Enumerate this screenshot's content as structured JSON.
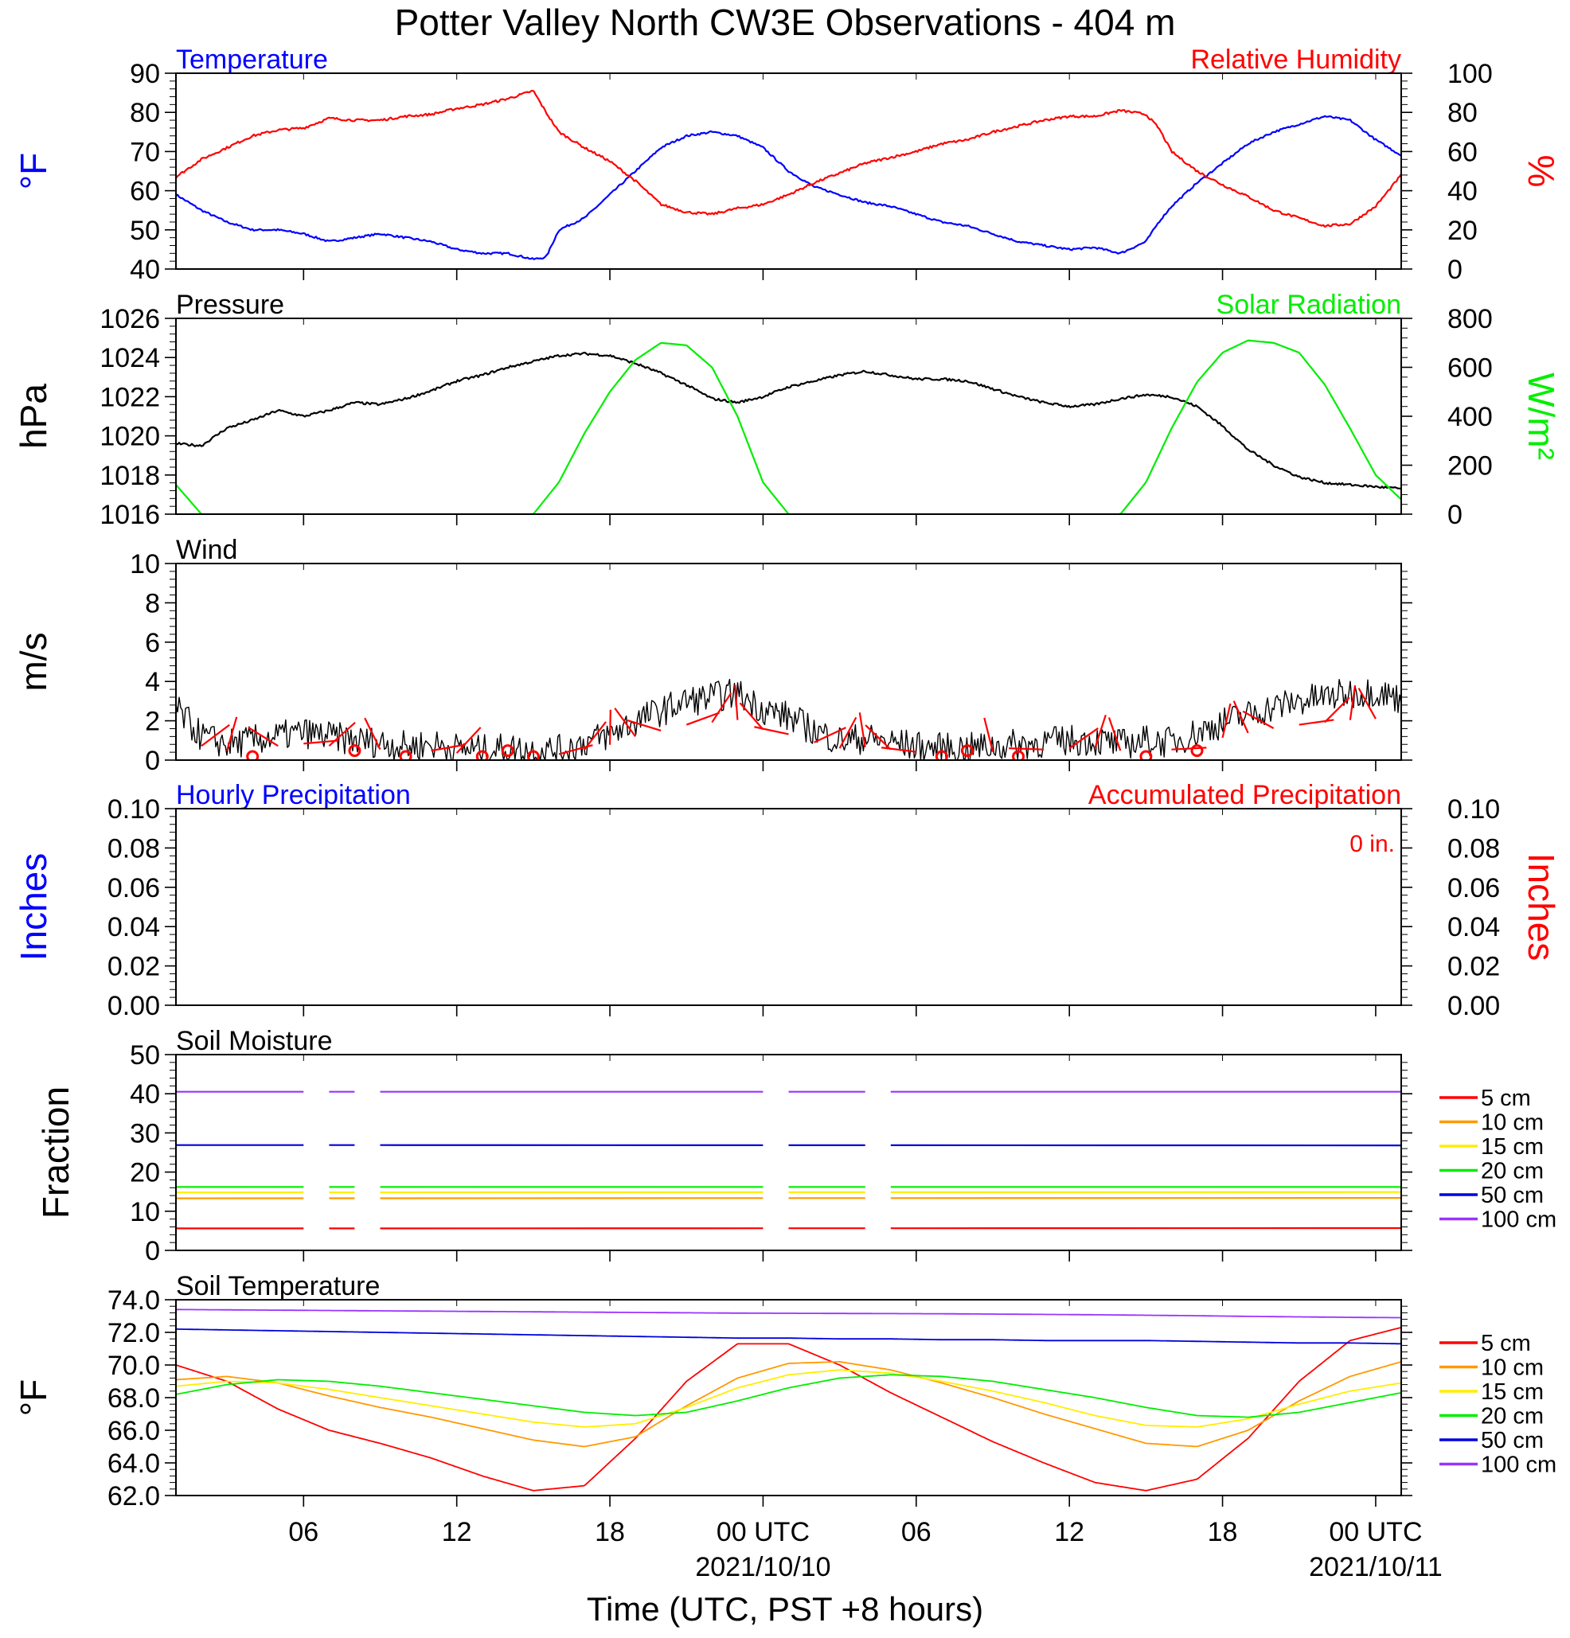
{
  "title": "Potter Valley North CW3E Observations - 404 m",
  "xlabel": "Time (UTC, PST +8 hours)",
  "colors": {
    "temperature": "#0000ff",
    "humidity": "#ff0000",
    "pressure": "#000000",
    "solar": "#00ee00",
    "wind": "#000000",
    "wind_barb": "#ff0000",
    "hourly_precip": "#0000ff",
    "accum_precip": "#ff0000",
    "d5": "#ff0000",
    "d10": "#ff9900",
    "d15": "#ffee00",
    "d20": "#00ee00",
    "d50": "#0000dd",
    "d100": "#9933ff"
  },
  "x_axis": {
    "range_hours": [
      0,
      48
    ],
    "ticks": [
      {
        "h": 5,
        "label": "06",
        "date": ""
      },
      {
        "h": 11,
        "label": "12",
        "date": ""
      },
      {
        "h": 17,
        "label": "18",
        "date": ""
      },
      {
        "h": 23,
        "label": "00 UTC",
        "date": "2021/10/10"
      },
      {
        "h": 29,
        "label": "06",
        "date": ""
      },
      {
        "h": 35,
        "label": "12",
        "date": ""
      },
      {
        "h": 41,
        "label": "18",
        "date": ""
      },
      {
        "h": 47,
        "label": "00 UTC",
        "date": "2021/10/11"
      }
    ]
  },
  "chart_data": [
    {
      "type": "line",
      "title_left": "Temperature",
      "title_right": "Relative Humidity",
      "ylabel_left": "°F",
      "ylabel_right": "%",
      "ylim_left": [
        40,
        90
      ],
      "ylim_right": [
        0,
        100
      ],
      "ticks_left": [
        "40",
        "50",
        "60",
        "70",
        "80",
        "90"
      ],
      "ticks_right": [
        "0",
        "20",
        "40",
        "60",
        "80",
        "100"
      ],
      "x_hours": [
        0,
        1,
        2,
        3,
        4,
        5,
        6,
        7,
        8,
        9,
        10,
        11,
        12,
        13,
        14,
        14.5,
        15,
        16,
        17,
        18,
        19,
        20,
        21,
        22,
        23,
        24,
        25,
        26,
        27,
        28,
        29,
        30,
        31,
        32,
        33,
        34,
        35,
        36,
        37,
        38,
        38.5,
        39,
        40,
        41,
        42,
        43,
        44,
        45,
        46,
        47,
        48
      ],
      "series": [
        {
          "name": "Temperature",
          "axis": "left",
          "values": [
            59,
            55,
            52,
            50,
            50,
            49,
            47,
            48,
            49,
            48,
            47,
            45,
            44,
            44,
            42.5,
            43,
            50,
            53,
            59,
            65,
            71,
            74,
            75,
            74,
            71,
            65,
            61,
            59,
            57,
            56,
            54,
            52,
            51,
            49,
            47,
            46,
            45,
            45.5,
            44,
            47,
            52,
            56,
            62,
            67,
            72,
            75,
            77,
            79,
            78,
            73,
            69
          ]
        },
        {
          "name": "Relative Humidity",
          "axis": "right",
          "values": [
            47,
            56,
            62,
            68,
            71,
            72,
            77,
            76,
            76,
            78,
            79,
            82,
            84,
            87,
            91,
            80,
            70,
            62,
            55,
            45,
            33,
            29,
            28,
            31,
            33,
            38,
            44,
            49,
            54,
            57,
            60,
            64,
            66,
            70,
            73,
            76,
            78,
            78,
            81,
            79,
            72,
            60,
            50,
            43,
            37,
            30,
            26,
            22,
            23,
            32,
            48
          ]
        }
      ]
    },
    {
      "type": "line",
      "title_left": "Pressure",
      "title_right": "Solar Radiation",
      "ylabel_left": "hPa",
      "ylabel_right": "W/m²",
      "ylim_left": [
        1016,
        1026
      ],
      "ylim_right": [
        0,
        800
      ],
      "ticks_left": [
        "1016",
        "1018",
        "1020",
        "1022",
        "1024",
        "1026"
      ],
      "ticks_right": [
        "0",
        "200",
        "400",
        "600",
        "800"
      ],
      "x_hours": [
        0,
        1,
        2,
        3,
        4,
        5,
        6,
        7,
        8,
        9,
        10,
        11,
        12,
        13,
        14,
        15,
        16,
        17,
        18,
        19,
        20,
        21,
        22,
        23,
        24,
        25,
        26,
        27,
        28,
        29,
        30,
        31,
        32,
        33,
        34,
        35,
        36,
        37,
        38,
        39,
        40,
        41,
        42,
        43,
        44,
        45,
        46,
        47,
        48
      ],
      "series": [
        {
          "name": "Pressure",
          "axis": "left",
          "values": [
            1019.6,
            1019.5,
            1020.4,
            1020.8,
            1021.3,
            1021.0,
            1021.3,
            1021.7,
            1021.6,
            1021.9,
            1022.3,
            1022.8,
            1023.1,
            1023.5,
            1023.8,
            1024.1,
            1024.2,
            1024.1,
            1023.7,
            1023.2,
            1022.6,
            1021.9,
            1021.7,
            1022.0,
            1022.5,
            1022.8,
            1023.1,
            1023.3,
            1023.1,
            1022.9,
            1022.9,
            1022.8,
            1022.4,
            1022.0,
            1021.7,
            1021.5,
            1021.6,
            1021.9,
            1022.1,
            1022.0,
            1021.5,
            1020.5,
            1019.3,
            1018.5,
            1017.9,
            1017.6,
            1017.5,
            1017.4,
            1017.3
          ]
        },
        {
          "name": "Solar Radiation",
          "axis": "right",
          "values": [
            120,
            0,
            0,
            0,
            0,
            0,
            0,
            0,
            0,
            0,
            0,
            0,
            0,
            0,
            0,
            130,
            330,
            500,
            630,
            700,
            690,
            600,
            400,
            130,
            0,
            0,
            0,
            0,
            0,
            0,
            0,
            0,
            0,
            0,
            0,
            0,
            0,
            0,
            130,
            350,
            540,
            660,
            710,
            700,
            660,
            530,
            350,
            160,
            60
          ]
        }
      ]
    },
    {
      "type": "line",
      "title_left": "Wind",
      "ylabel_left": "m/s",
      "ylim_left": [
        0,
        10
      ],
      "ticks_left": [
        "0",
        "2",
        "4",
        "6",
        "8",
        "10"
      ],
      "x_hours": [
        0,
        1,
        2,
        3,
        4,
        5,
        6,
        7,
        8,
        9,
        10,
        11,
        12,
        13,
        14,
        15,
        16,
        17,
        18,
        19,
        20,
        21,
        22,
        23,
        24,
        25,
        26,
        27,
        28,
        29,
        30,
        31,
        32,
        33,
        34,
        35,
        36,
        37,
        38,
        39,
        40,
        41,
        42,
        43,
        44,
        45,
        46,
        47,
        48
      ],
      "series": [
        {
          "name": "Wind Speed",
          "axis": "left",
          "values": [
            2.6,
            1.2,
            0.8,
            1.0,
            1.2,
            1.4,
            1.2,
            1.0,
            0.9,
            0.7,
            0.8,
            0.6,
            0.5,
            0.6,
            0.5,
            0.5,
            0.9,
            1.3,
            2.0,
            2.5,
            3.0,
            3.2,
            3.4,
            2.6,
            2.2,
            1.5,
            1.0,
            1.1,
            0.9,
            0.7,
            0.6,
            0.6,
            0.7,
            0.8,
            0.9,
            1.0,
            1.0,
            0.8,
            1.0,
            0.9,
            1.4,
            1.9,
            2.3,
            2.7,
            3.0,
            3.2,
            3.4,
            3.5,
            3.1
          ]
        }
      ],
      "calm_hours": [
        3,
        7,
        9,
        12,
        13,
        14,
        30,
        31,
        33,
        38,
        40
      ]
    },
    {
      "type": "line",
      "title_left": "Hourly Precipitation",
      "title_right": "Accumulated Precipitation",
      "annotation": "0 in.",
      "ylabel_left": "Inches",
      "ylabel_right": "Inches",
      "ylim_left": [
        0,
        0.1
      ],
      "ylim_right": [
        0,
        0.1
      ],
      "ticks_left": [
        "0.00",
        "0.02",
        "0.04",
        "0.06",
        "0.08",
        "0.10"
      ],
      "ticks_right": [
        "0.00",
        "0.02",
        "0.04",
        "0.06",
        "0.08",
        "0.10"
      ],
      "x_hours": [
        0,
        48
      ],
      "series": [
        {
          "name": "Hourly Precipitation",
          "axis": "left",
          "values": [
            0,
            0
          ]
        },
        {
          "name": "Accumulated Precipitation",
          "axis": "right",
          "values": [
            0,
            0
          ]
        }
      ]
    },
    {
      "type": "line",
      "title_left": "Soil Moisture",
      "ylabel_left": "Fraction",
      "ylim_left": [
        0,
        50
      ],
      "ticks_left": [
        "0",
        "10",
        "20",
        "30",
        "40",
        "50"
      ],
      "x_hours": [
        0,
        48
      ],
      "gaps_hours": [
        [
          5,
          6
        ],
        [
          7,
          8
        ],
        [
          23,
          24
        ],
        [
          27,
          28
        ]
      ],
      "legend": [
        "5 cm",
        "10 cm",
        "15 cm",
        "20 cm",
        "50 cm",
        "100 cm"
      ],
      "series": [
        {
          "name": "5 cm",
          "axis": "left",
          "values": [
            5.6,
            5.7
          ]
        },
        {
          "name": "10 cm",
          "axis": "left",
          "values": [
            13.3,
            13.4
          ]
        },
        {
          "name": "15 cm",
          "axis": "left",
          "values": [
            14.8,
            14.9
          ]
        },
        {
          "name": "20 cm",
          "axis": "left",
          "values": [
            16.2,
            16.2
          ]
        },
        {
          "name": "50 cm",
          "axis": "left",
          "values": [
            26.9,
            26.8
          ]
        },
        {
          "name": "100 cm",
          "axis": "left",
          "values": [
            40.5,
            40.5
          ]
        }
      ]
    },
    {
      "type": "line",
      "title_left": "Soil Temperature",
      "ylabel_left": "°F",
      "ylim_left": [
        62,
        74
      ],
      "ticks_left": [
        "62.0",
        "64.0",
        "66.0",
        "68.0",
        "70.0",
        "72.0",
        "74.0"
      ],
      "x_hours": [
        0,
        2,
        4,
        6,
        8,
        10,
        12,
        14,
        16,
        18,
        20,
        22,
        24,
        26,
        28,
        30,
        32,
        34,
        36,
        38,
        40,
        42,
        44,
        46,
        48
      ],
      "legend": [
        "5 cm",
        "10 cm",
        "15 cm",
        "20 cm",
        "50 cm",
        "100 cm"
      ],
      "series": [
        {
          "name": "5 cm",
          "axis": "left",
          "values": [
            70.0,
            69.0,
            67.3,
            66.0,
            65.2,
            64.3,
            63.2,
            62.3,
            62.6,
            65.5,
            69.0,
            71.3,
            71.3,
            70.0,
            68.3,
            66.8,
            65.3,
            64.0,
            62.8,
            62.3,
            63.0,
            65.5,
            69.0,
            71.5,
            72.3
          ]
        },
        {
          "name": "10 cm",
          "axis": "left",
          "values": [
            69.1,
            69.3,
            68.9,
            68.1,
            67.4,
            66.8,
            66.1,
            65.4,
            65.0,
            65.6,
            67.5,
            69.2,
            70.1,
            70.2,
            69.7,
            68.9,
            68.0,
            67.0,
            66.1,
            65.2,
            65.0,
            66.0,
            67.8,
            69.3,
            70.2
          ]
        },
        {
          "name": "15 cm",
          "axis": "left",
          "values": [
            68.7,
            69.0,
            68.9,
            68.5,
            68.0,
            67.5,
            67.0,
            66.5,
            66.2,
            66.4,
            67.4,
            68.6,
            69.4,
            69.7,
            69.5,
            69.0,
            68.4,
            67.7,
            66.9,
            66.3,
            66.2,
            66.7,
            67.6,
            68.4,
            68.9
          ]
        },
        {
          "name": "20 cm",
          "axis": "left",
          "values": [
            68.2,
            68.8,
            69.1,
            69.0,
            68.7,
            68.3,
            67.9,
            67.5,
            67.1,
            66.9,
            67.1,
            67.8,
            68.6,
            69.2,
            69.4,
            69.3,
            69.0,
            68.5,
            68.0,
            67.4,
            66.9,
            66.8,
            67.1,
            67.7,
            68.3
          ]
        },
        {
          "name": "50 cm",
          "axis": "left",
          "values": [
            72.2,
            72.15,
            72.1,
            72.05,
            72.0,
            71.95,
            71.9,
            71.85,
            71.8,
            71.75,
            71.7,
            71.65,
            71.65,
            71.6,
            71.6,
            71.55,
            71.55,
            71.5,
            71.5,
            71.5,
            71.45,
            71.4,
            71.35,
            71.35,
            71.3
          ]
        },
        {
          "name": "100 cm",
          "axis": "left",
          "values": [
            73.4,
            73.38,
            73.36,
            73.34,
            73.32,
            73.3,
            73.28,
            73.26,
            73.24,
            73.22,
            73.2,
            73.18,
            73.17,
            73.16,
            73.15,
            73.14,
            73.12,
            73.1,
            73.08,
            73.05,
            73.02,
            72.98,
            72.95,
            72.92,
            72.9
          ]
        }
      ]
    }
  ]
}
